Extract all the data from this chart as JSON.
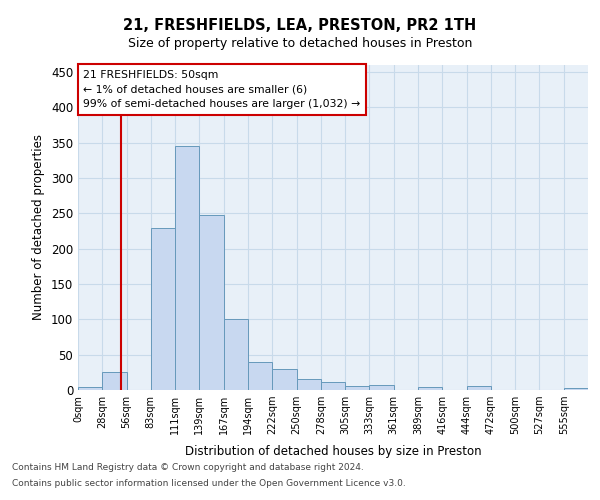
{
  "title": "21, FRESHFIELDS, LEA, PRESTON, PR2 1TH",
  "subtitle": "Size of property relative to detached houses in Preston",
  "xlabel": "Distribution of detached houses by size in Preston",
  "ylabel": "Number of detached properties",
  "bar_color": "#c8d8f0",
  "bar_edge_color": "#6699bb",
  "grid_color": "#c8daea",
  "background_color": "#e8f0f8",
  "bin_labels": [
    "0sqm",
    "28sqm",
    "56sqm",
    "83sqm",
    "111sqm",
    "139sqm",
    "167sqm",
    "194sqm",
    "222sqm",
    "250sqm",
    "278sqm",
    "305sqm",
    "333sqm",
    "361sqm",
    "389sqm",
    "416sqm",
    "444sqm",
    "472sqm",
    "500sqm",
    "527sqm",
    "555sqm"
  ],
  "bar_heights": [
    4,
    25,
    0,
    230,
    345,
    247,
    101,
    40,
    30,
    15,
    11,
    5,
    7,
    0,
    4,
    0,
    5,
    0,
    0,
    0,
    3
  ],
  "ylim": [
    0,
    460
  ],
  "yticks": [
    0,
    50,
    100,
    150,
    200,
    250,
    300,
    350,
    400,
    450
  ],
  "annotation_text": "21 FRESHFIELDS: 50sqm\n← 1% of detached houses are smaller (6)\n99% of semi-detached houses are larger (1,032) →",
  "annotation_box_color": "#ffffff",
  "annotation_box_edge_color": "#cc0000",
  "vline_color": "#cc0000",
  "footnote_line1": "Contains HM Land Registry data © Crown copyright and database right 2024.",
  "footnote_line2": "Contains public sector information licensed under the Open Government Licence v3.0."
}
